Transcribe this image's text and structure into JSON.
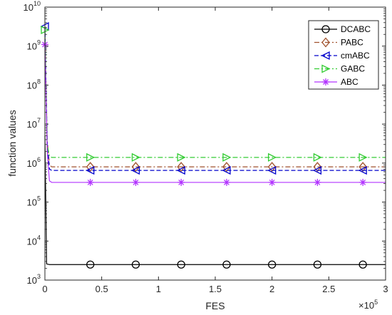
{
  "chart_data": {
    "type": "line",
    "title": "",
    "xlabel": "FES",
    "ylabel": "function values",
    "x_multiplier_label": "×10",
    "x_multiplier_exp": "5",
    "x_scale": 100000,
    "xlim": [
      0,
      300000
    ],
    "ylim_exp": [
      3,
      10
    ],
    "yscale": "log",
    "x_ticks": [
      0,
      50000,
      100000,
      150000,
      200000,
      250000,
      300000
    ],
    "x_tick_labels": [
      "0",
      "0.5",
      "1",
      "1.5",
      "2",
      "2.5",
      "3"
    ],
    "y_ticks_exp": [
      3,
      4,
      5,
      6,
      7,
      8,
      9,
      10
    ],
    "y_tick_labels": [
      {
        "base": "10",
        "exp": "3"
      },
      {
        "base": "10",
        "exp": "4"
      },
      {
        "base": "10",
        "exp": "5"
      },
      {
        "base": "10",
        "exp": "6"
      },
      {
        "base": "10",
        "exp": "7"
      },
      {
        "base": "10",
        "exp": "8"
      },
      {
        "base": "10",
        "exp": "9"
      },
      {
        "base": "10",
        "exp": "10"
      }
    ],
    "grid": false,
    "legend_position": "top-right",
    "series": [
      {
        "name": "DCABC",
        "color": "#000000",
        "marker": "circle",
        "dash": "solid",
        "x": [
          0,
          1500,
          4000,
          40000,
          80000,
          120000,
          160000,
          200000,
          240000,
          280000,
          300000
        ],
        "y": [
          5000000,
          2600,
          2500,
          2500,
          2500,
          2500,
          2500,
          2500,
          2500,
          2500,
          2500
        ],
        "marker_x": [
          40000,
          80000,
          120000,
          160000,
          200000,
          240000,
          280000
        ]
      },
      {
        "name": "PABC",
        "color": "#a0522d",
        "marker": "diamond",
        "dash": "dashdot",
        "x": [
          0,
          2000,
          4000,
          6000,
          40000,
          80000,
          120000,
          160000,
          200000,
          240000,
          280000,
          300000
        ],
        "y": [
          3000000000,
          4000000,
          900000,
          800000,
          800000,
          800000,
          800000,
          800000,
          800000,
          800000,
          800000,
          800000
        ],
        "marker_x": [
          40000,
          80000,
          120000,
          160000,
          200000,
          240000,
          280000
        ]
      },
      {
        "name": "cmABC",
        "color": "#0000cc",
        "marker": "triangle-left",
        "dash": "dashed",
        "x": [
          0,
          2000,
          4000,
          6000,
          40000,
          80000,
          120000,
          160000,
          200000,
          240000,
          280000,
          300000
        ],
        "y": [
          3200000000,
          3500000,
          700000,
          650000,
          650000,
          650000,
          650000,
          650000,
          650000,
          650000,
          650000,
          650000
        ],
        "marker_x": [
          0,
          40000,
          80000,
          120000,
          160000,
          200000,
          240000,
          280000
        ]
      },
      {
        "name": "GABC",
        "color": "#33cc33",
        "marker": "triangle-right",
        "dash": "dashdot",
        "x": [
          0,
          2000,
          4000,
          6000,
          40000,
          80000,
          120000,
          160000,
          200000,
          240000,
          280000,
          300000
        ],
        "y": [
          2600000000,
          3000000,
          1500000,
          1400000,
          1400000,
          1400000,
          1400000,
          1400000,
          1400000,
          1400000,
          1400000,
          1400000
        ],
        "marker_x": [
          0,
          40000,
          80000,
          120000,
          160000,
          200000,
          240000,
          280000
        ]
      },
      {
        "name": "ABC",
        "color": "#b233ff",
        "marker": "star",
        "dash": "solid",
        "x": [
          0,
          2000,
          4000,
          6000,
          40000,
          80000,
          120000,
          160000,
          200000,
          240000,
          280000,
          300000
        ],
        "y": [
          1100000000,
          2000000,
          350000,
          320000,
          320000,
          320000,
          320000,
          320000,
          320000,
          320000,
          320000,
          320000
        ],
        "marker_x": [
          0,
          40000,
          80000,
          120000,
          160000,
          200000,
          240000,
          280000
        ]
      }
    ]
  }
}
